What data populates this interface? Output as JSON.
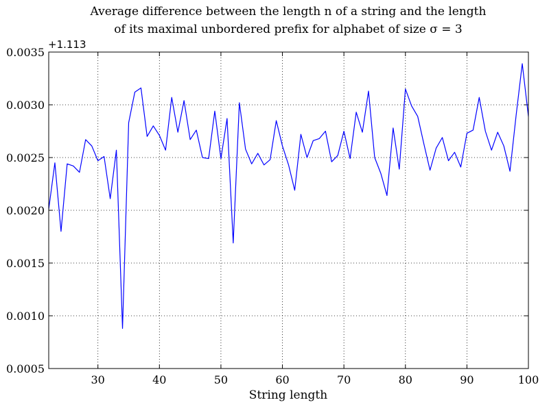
{
  "chart_data": {
    "type": "line",
    "title_line1": "Average difference between the length n of a string and the length",
    "title_line2": "of its maximal unbordered prefix for alphabet of size σ = 3",
    "xlabel": "String length",
    "ylabel": "",
    "offset_label": "+1.113",
    "xlim": [
      22,
      100
    ],
    "ylim": [
      0.0005,
      0.0035
    ],
    "xticks": [
      30,
      40,
      50,
      60,
      70,
      80,
      90,
      100
    ],
    "yticks": [
      0.0005,
      0.001,
      0.0015,
      0.002,
      0.0025,
      0.003,
      0.0035
    ],
    "ytick_labels": [
      "0.0005",
      "0.0010",
      "0.0015",
      "0.0020",
      "0.0025",
      "0.0030",
      "0.0035"
    ],
    "grid": true,
    "line_color": "#0000ff",
    "x": [
      22,
      23,
      24,
      25,
      26,
      27,
      28,
      29,
      30,
      31,
      32,
      33,
      34,
      35,
      36,
      37,
      38,
      39,
      40,
      41,
      42,
      43,
      44,
      45,
      46,
      47,
      48,
      49,
      50,
      51,
      52,
      53,
      54,
      55,
      56,
      57,
      58,
      59,
      60,
      61,
      62,
      63,
      64,
      65,
      66,
      67,
      68,
      69,
      70,
      71,
      72,
      73,
      74,
      75,
      76,
      77,
      78,
      79,
      80,
      81,
      82,
      83,
      84,
      85,
      86,
      87,
      88,
      89,
      90,
      91,
      92,
      93,
      94,
      95,
      96,
      97,
      98,
      99,
      100
    ],
    "y": [
      0.00201,
      0.00245,
      0.0018,
      0.00244,
      0.00242,
      0.00236,
      0.00267,
      0.00261,
      0.00247,
      0.00251,
      0.00211,
      0.00257,
      0.00088,
      0.00283,
      0.00312,
      0.00316,
      0.0027,
      0.0028,
      0.00271,
      0.00257,
      0.00307,
      0.00274,
      0.00304,
      0.00267,
      0.00276,
      0.0025,
      0.00249,
      0.00294,
      0.00249,
      0.00287,
      0.00169,
      0.00302,
      0.00258,
      0.00244,
      0.00254,
      0.00243,
      0.00248,
      0.00285,
      0.00261,
      0.00243,
      0.00219,
      0.00272,
      0.0025,
      0.00266,
      0.00268,
      0.00275,
      0.00246,
      0.00252,
      0.00275,
      0.00249,
      0.00293,
      0.00274,
      0.00313,
      0.0025,
      0.00235,
      0.00214,
      0.00278,
      0.00239,
      0.00315,
      0.00299,
      0.00289,
      0.00263,
      0.00238,
      0.00259,
      0.00269,
      0.00247,
      0.00255,
      0.00241,
      0.00273,
      0.00276,
      0.00307,
      0.00275,
      0.00257,
      0.00274,
      0.00261,
      0.00237,
      0.0029,
      0.00339,
      0.00289
    ]
  }
}
